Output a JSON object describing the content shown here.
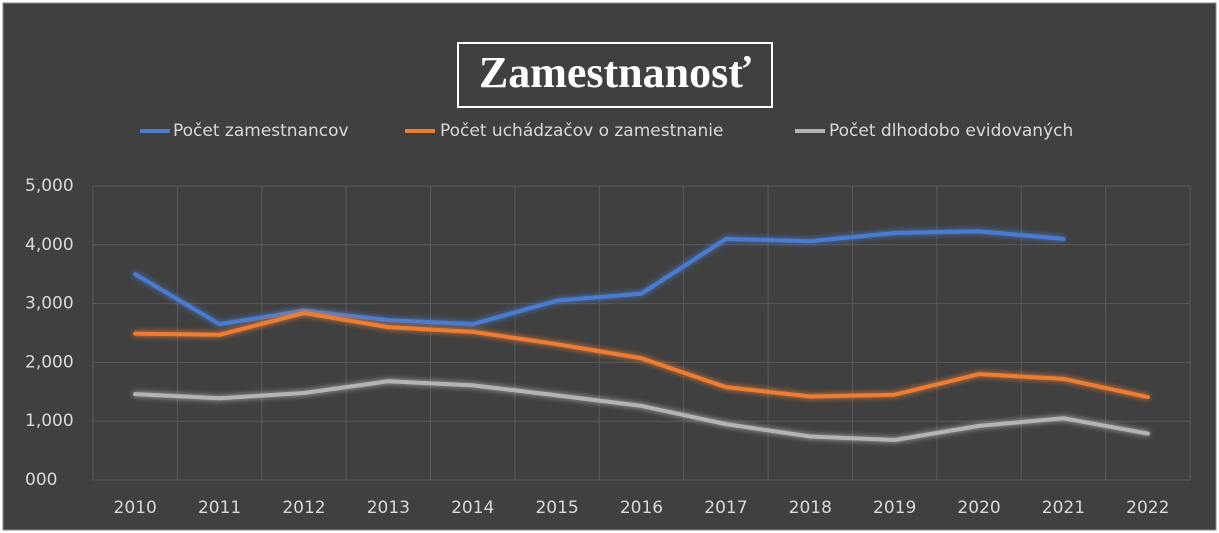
{
  "chart_data": {
    "type": "line",
    "title": "Zamestnanosť",
    "categories": [
      "2010",
      "2011",
      "2012",
      "2013",
      "2014",
      "2015",
      "2016",
      "2017",
      "2018",
      "2019",
      "2020",
      "2021",
      "2022"
    ],
    "series": [
      {
        "name": "Počet zamestnancov",
        "color": "#4a7bd0",
        "values": [
          3500,
          2650,
          2880,
          2720,
          2650,
          3050,
          3170,
          4100,
          4060,
          4200,
          4230,
          4100,
          null
        ]
      },
      {
        "name": "Počet uchádzačov o zamestnanie",
        "color": "#ed7d31",
        "values": [
          2490,
          2470,
          2840,
          2600,
          2520,
          2310,
          2070,
          1580,
          1420,
          1450,
          1800,
          1720,
          1410
        ]
      },
      {
        "name": "Počet dlhodobo evidovaných",
        "color": "#b4b4b4",
        "values": [
          1460,
          1390,
          1480,
          1680,
          1610,
          1440,
          1260,
          950,
          740,
          680,
          920,
          1050,
          790
        ]
      }
    ],
    "ylim": [
      0,
      5000
    ],
    "yticks": [
      {
        "value": 0,
        "label": "000"
      },
      {
        "value": 1000,
        "label": "1,000"
      },
      {
        "value": 2000,
        "label": "2,000"
      },
      {
        "value": 3000,
        "label": "3,000"
      },
      {
        "value": 4000,
        "label": "4,000"
      },
      {
        "value": 5000,
        "label": "5,000"
      }
    ],
    "grid": true,
    "legend": "top"
  }
}
